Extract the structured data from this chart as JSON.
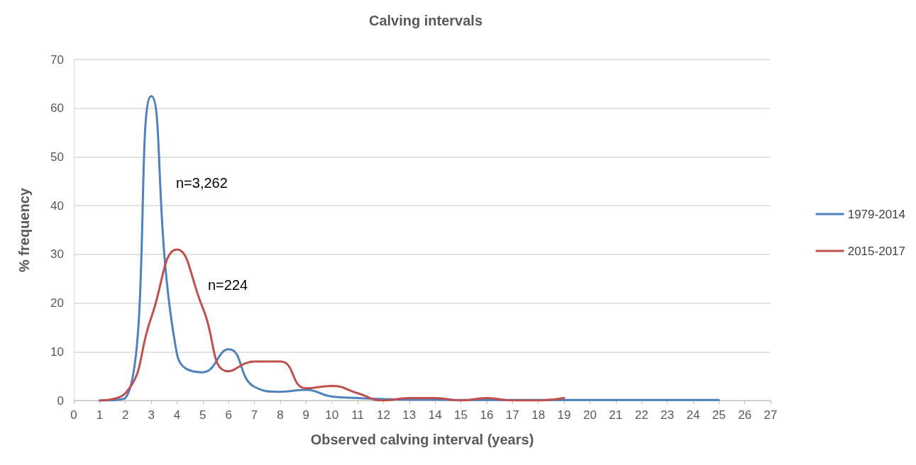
{
  "chart_data": {
    "type": "line",
    "title": "Calving intervals",
    "xlabel": "Observed calving interval (years)",
    "ylabel": "% frequency",
    "series": [
      {
        "name": "1979-2014",
        "color": "#4f81bd",
        "x": [
          1,
          2,
          3,
          4,
          5,
          6,
          7,
          8,
          9,
          10,
          11,
          12,
          13,
          14,
          15,
          16,
          17,
          18,
          19,
          20,
          21,
          22,
          23,
          24,
          25
        ],
        "values": [
          0,
          0.5,
          62.5,
          9.5,
          5.8,
          10.5,
          2.8,
          1.8,
          2.2,
          0.8,
          0.5,
          0.3,
          0.2,
          0.2,
          0.1,
          0.1,
          0.1,
          0.1,
          0.1,
          0.1,
          0.1,
          0.1,
          0.1,
          0.1,
          0.1
        ]
      },
      {
        "name": "2015-2017",
        "color": "#c0504d",
        "x": [
          1,
          2,
          3,
          4,
          5,
          6,
          7,
          8,
          9,
          10,
          11,
          12,
          13,
          14,
          15,
          16,
          17,
          18,
          19
        ],
        "values": [
          0,
          1.5,
          17,
          31,
          19,
          6,
          8,
          8,
          2.5,
          3,
          1.5,
          0,
          0.5,
          0.5,
          0,
          0.5,
          0,
          0,
          0.5
        ]
      }
    ],
    "xlim": [
      0,
      27
    ],
    "xticks": [
      0,
      1,
      2,
      3,
      4,
      5,
      6,
      7,
      8,
      9,
      10,
      11,
      12,
      13,
      14,
      15,
      16,
      17,
      18,
      19,
      20,
      21,
      22,
      23,
      24,
      25,
      26,
      27
    ],
    "ylim": [
      0,
      70
    ],
    "yticks": [
      0,
      10,
      20,
      30,
      40,
      50,
      60,
      70
    ],
    "grid": "y",
    "legend": "right",
    "marker": "none",
    "line_style": "solid",
    "annotations": [
      "n=3,262",
      "n=224"
    ]
  }
}
